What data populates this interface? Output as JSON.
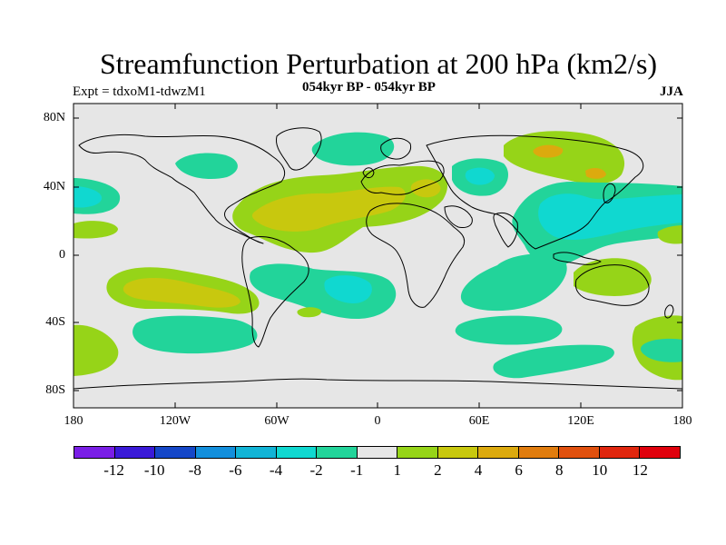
{
  "header": {
    "title": "Streamfunction Perturbation at 200 hPa (km2/s)",
    "expt": "Expt = tdxoM1-tdwzM1",
    "period": "054kyr BP - 054kyr BP",
    "season": "JJA"
  },
  "axes": {
    "y_ticks": [
      "80N",
      "40N",
      "0",
      "40S",
      "80S"
    ],
    "x_ticks": [
      "180",
      "120W",
      "60W",
      "0",
      "60E",
      "120E",
      "180"
    ]
  },
  "legend": {
    "labels": [
      "-12",
      "-10",
      "-8",
      "-6",
      "-4",
      "-2",
      "-1",
      "1",
      "2",
      "4",
      "6",
      "8",
      "10",
      "12"
    ],
    "colors": [
      "#7a1ee6",
      "#3a1ad8",
      "#1547c8",
      "#138fdc",
      "#12b4d6",
      "#10d8d0",
      "#22d49a",
      "#e6e6e6",
      "#96d418",
      "#c8c80e",
      "#dcaa0e",
      "#e07c0e",
      "#e0500e",
      "#e0260e",
      "#e0000c"
    ]
  },
  "colors": {
    "neutral": "#e6e6e6",
    "green_neg": "#22d49a",
    "cyan_neg": "#10d8d0",
    "green_pos": "#96d418",
    "yellow_pos": "#c8c80e",
    "orange_pos": "#dcaa0e"
  }
}
